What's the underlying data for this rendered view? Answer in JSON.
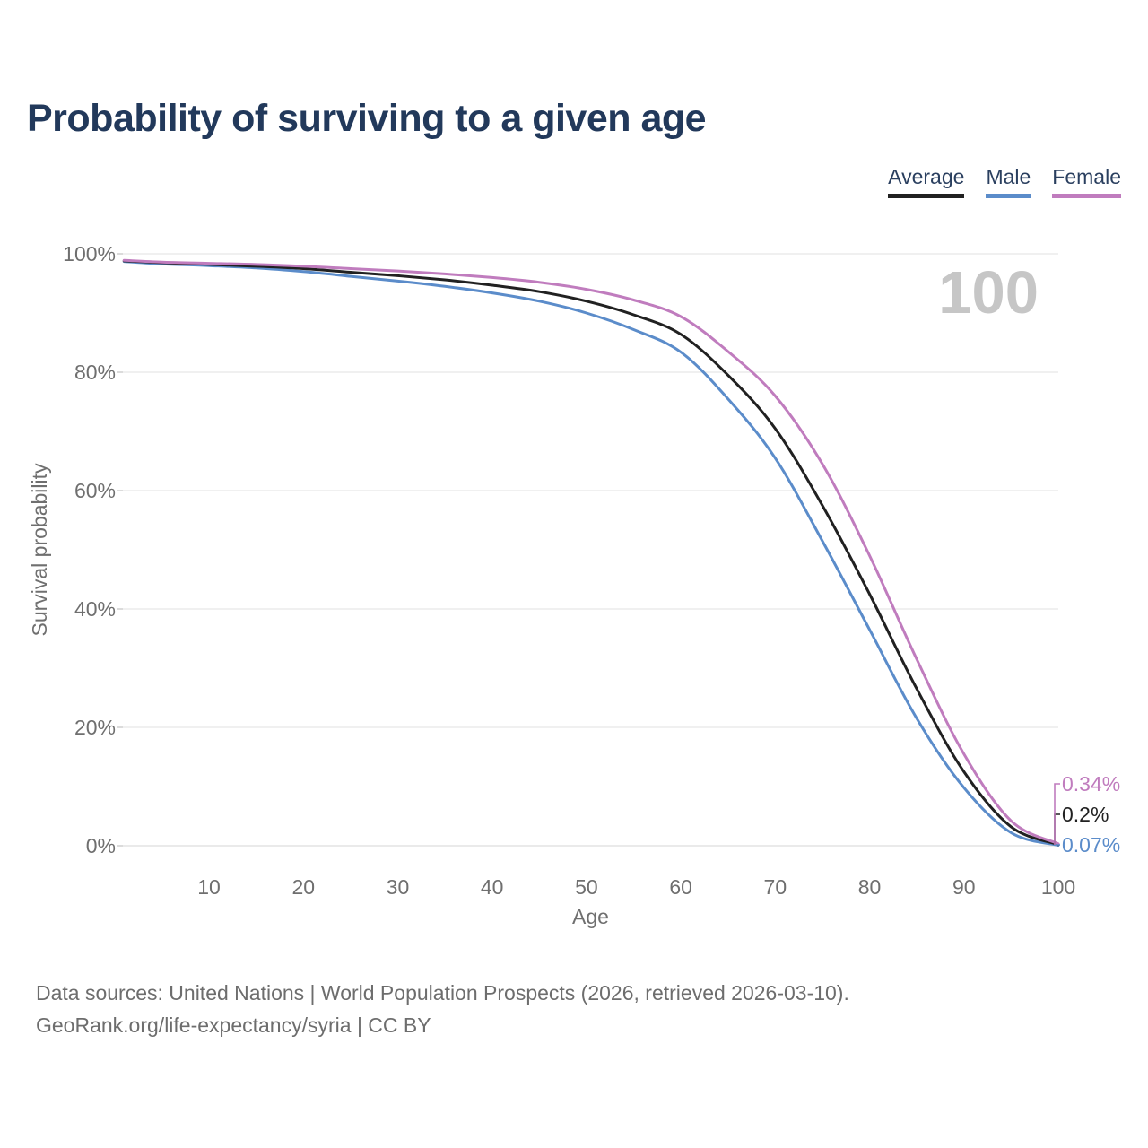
{
  "header": {
    "title": "Probability of surviving to a given age"
  },
  "legend": {
    "items": [
      {
        "label": "Average",
        "color": "#212121"
      },
      {
        "label": "Male",
        "color": "#5b8cca"
      },
      {
        "label": "Female",
        "color": "#c07cbe"
      }
    ]
  },
  "chart_data": {
    "type": "line",
    "title": "Probability of surviving to a given age",
    "xlabel": "Age",
    "ylabel": "Survival probability",
    "xlim": [
      1,
      100
    ],
    "ylim": [
      0,
      100
    ],
    "grid": true,
    "legend_position": "top-right",
    "watermark": "100",
    "xticks": [
      10,
      20,
      30,
      40,
      50,
      60,
      70,
      80,
      90,
      100
    ],
    "yticks": [
      {
        "value": 0,
        "label": "0%"
      },
      {
        "value": 20,
        "label": "20%"
      },
      {
        "value": 40,
        "label": "40%"
      },
      {
        "value": 60,
        "label": "60%"
      },
      {
        "value": 80,
        "label": "80%"
      },
      {
        "value": 100,
        "label": "100%"
      }
    ],
    "x": [
      1,
      5,
      10,
      15,
      20,
      25,
      30,
      35,
      40,
      45,
      50,
      55,
      60,
      65,
      70,
      75,
      80,
      85,
      90,
      95,
      100
    ],
    "series": [
      {
        "name": "Average",
        "color": "#212121",
        "end_label": "0.2%",
        "values": [
          98.8,
          98.5,
          98.2,
          97.9,
          97.5,
          96.9,
          96.3,
          95.6,
          94.7,
          93.6,
          92.0,
          89.7,
          86.4,
          79.5,
          70.5,
          57.5,
          42.5,
          26.5,
          12.5,
          3.2,
          0.2
        ]
      },
      {
        "name": "Male",
        "color": "#5b8cca",
        "end_label": "0.07%",
        "values": [
          98.7,
          98.3,
          98.0,
          97.6,
          97.0,
          96.2,
          95.4,
          94.5,
          93.4,
          92.0,
          90.0,
          87.2,
          83.4,
          75.5,
          65.5,
          51.5,
          36.5,
          21.5,
          9.8,
          2.2,
          0.07
        ]
      },
      {
        "name": "Female",
        "color": "#c07cbe",
        "end_label": "0.34%",
        "values": [
          98.9,
          98.6,
          98.4,
          98.2,
          97.9,
          97.5,
          97.1,
          96.6,
          96.0,
          95.2,
          94.0,
          92.2,
          89.4,
          83.5,
          76.0,
          64.5,
          49.0,
          31.5,
          15.5,
          4.2,
          0.34
        ]
      }
    ]
  },
  "footer": {
    "line1": "Data sources: United Nations | World Population Prospects (2026, retrieved 2026-03-10).",
    "line2": "GeoRank.org/life-expectancy/syria | CC BY"
  }
}
